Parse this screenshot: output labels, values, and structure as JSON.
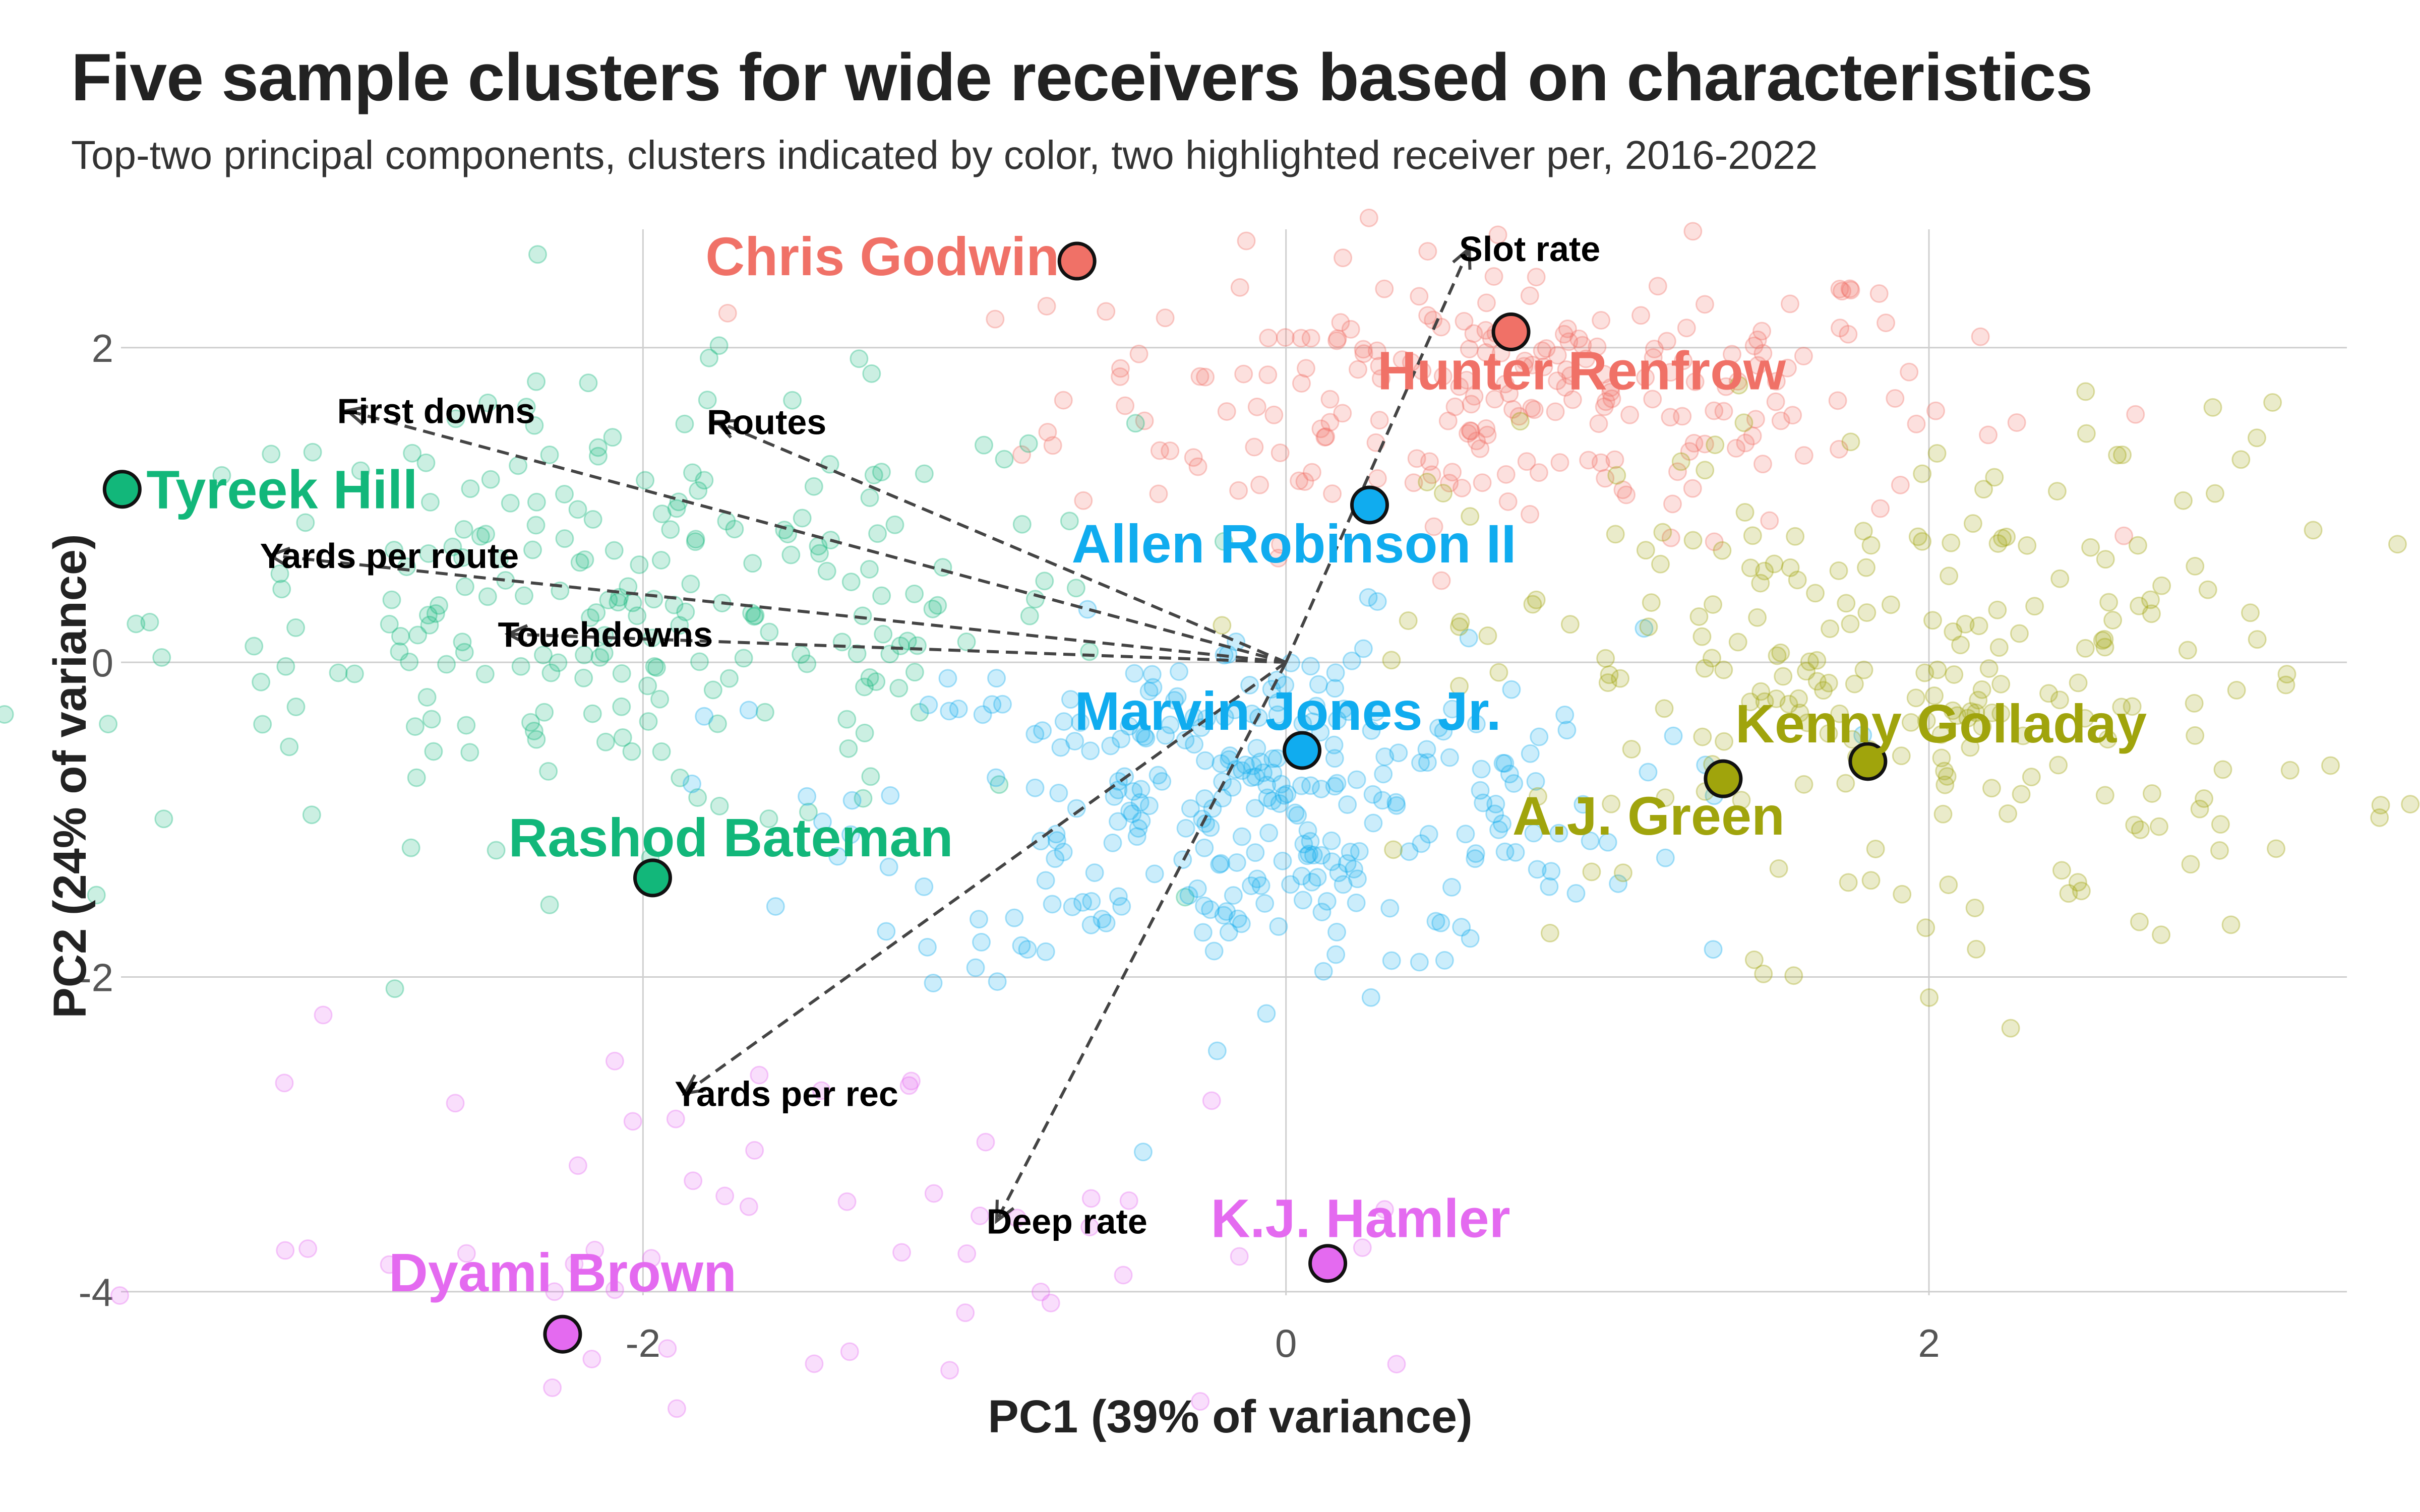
{
  "title": "Five sample clusters for wide receivers based on characteristics",
  "subtitle": "Top-two principal components, clusters indicated by color, two highlighted receiver per, 2016-2022",
  "colors": {
    "red": "#f07167",
    "green": "#12b77a",
    "blue": "#10acef",
    "olive": "#a0a40c",
    "magenta": "#e46af0",
    "grid": "#cfcfcf",
    "arrow": "#444444"
  },
  "chart_data": {
    "type": "scatter",
    "title": "Five sample clusters for wide receivers based on characteristics",
    "subtitle": "Top-two principal components, clusters indicated by color, two highlighted receiver per, 2016-2022",
    "xlabel": "PC1 (39% of variance)",
    "ylabel": "PC2 (24% of variance)",
    "xlim": [
      -4.0,
      3.3
    ],
    "ylim": [
      -5.4,
      2.8
    ],
    "x_ticks": [
      -2,
      0,
      2
    ],
    "y_ticks": [
      -4,
      -2,
      0,
      2
    ],
    "x_tick_labels": [
      "-2",
      "0",
      "2"
    ],
    "y_tick_labels": [
      "-4",
      "-2",
      "0",
      "2"
    ],
    "grid": true,
    "legend": "none",
    "clusters": [
      {
        "color": "red",
        "center": [
          0.7,
          1.7
        ],
        "spread": [
          0.7,
          0.45
        ],
        "count": 230
      },
      {
        "color": "green",
        "center": [
          -2.0,
          0.3
        ],
        "spread": [
          0.75,
          0.7
        ],
        "count": 230
      },
      {
        "color": "blue",
        "center": [
          -0.1,
          -0.9
        ],
        "spread": [
          0.6,
          0.55
        ],
        "count": 300
      },
      {
        "color": "olive",
        "center": [
          1.9,
          -0.1
        ],
        "spread": [
          0.7,
          0.85
        ],
        "count": 240
      },
      {
        "color": "magenta",
        "center": [
          -1.4,
          -3.7
        ],
        "spread": [
          1.0,
          0.65
        ],
        "count": 55
      }
    ],
    "highlighted": [
      {
        "name": "Chris Godwin",
        "x": -0.65,
        "y": 2.55,
        "color": "red"
      },
      {
        "name": "Hunter Renfrow",
        "x": 0.7,
        "y": 2.1,
        "color": "red"
      },
      {
        "name": "Tyreek Hill",
        "x": -3.62,
        "y": 1.1,
        "color": "green"
      },
      {
        "name": "Rashod Bateman",
        "x": -1.97,
        "y": -1.37,
        "color": "green"
      },
      {
        "name": "Allen Robinson II",
        "x": 0.26,
        "y": 1.0,
        "color": "blue"
      },
      {
        "name": "Marvin Jones Jr.",
        "x": 0.05,
        "y": -0.56,
        "color": "blue"
      },
      {
        "name": "Kenny Golladay",
        "x": 1.81,
        "y": -0.63,
        "color": "olive"
      },
      {
        "name": "A.J. Green",
        "x": 1.36,
        "y": -0.74,
        "color": "olive"
      },
      {
        "name": "K.J. Hamler",
        "x": 0.13,
        "y": -3.82,
        "color": "magenta"
      },
      {
        "name": "Dyami Brown",
        "x": -2.25,
        "y": -4.27,
        "color": "magenta"
      }
    ],
    "loadings": [
      {
        "name": "Slot rate",
        "x": 0.57,
        "y": 2.63
      },
      {
        "name": "First downs",
        "x": -2.92,
        "y": 1.6
      },
      {
        "name": "Routes",
        "x": -1.77,
        "y": 1.53
      },
      {
        "name": "Yards per route",
        "x": -3.16,
        "y": 0.68
      },
      {
        "name": "Touchdowns",
        "x": -2.42,
        "y": 0.18
      },
      {
        "name": "Yards per rec",
        "x": -1.87,
        "y": -2.74
      },
      {
        "name": "Deep rate",
        "x": -0.9,
        "y": -3.55
      }
    ]
  }
}
